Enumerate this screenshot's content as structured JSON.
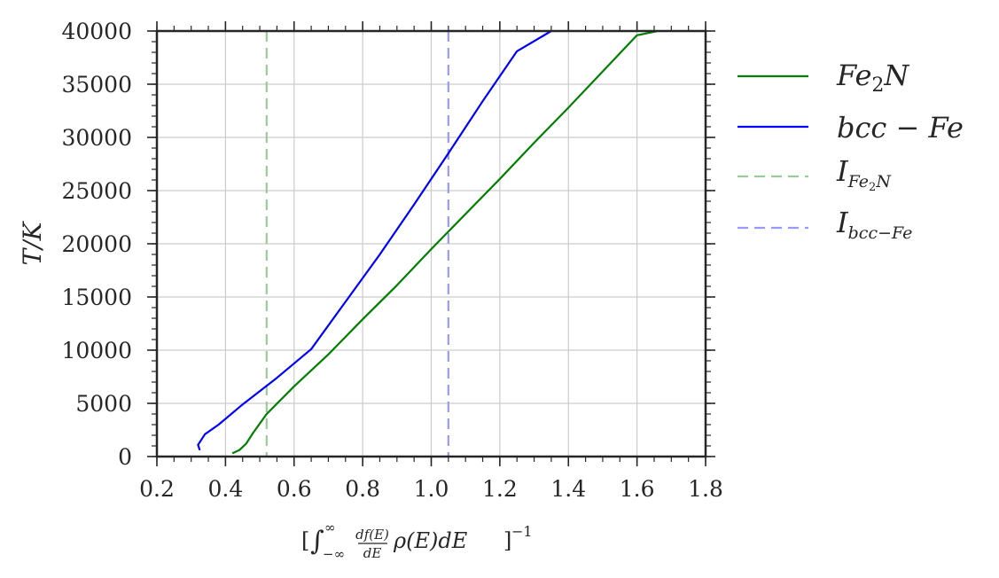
{
  "chart_data": {
    "type": "line",
    "xlabel": "",
    "ylabel": "T/K",
    "xlim": [
      0.2,
      1.8
    ],
    "ylim": [
      0,
      40000
    ],
    "xticks": [
      "0.2",
      "0.4",
      "0.6",
      "0.8",
      "1.0",
      "1.2",
      "1.4",
      "1.6",
      "1.8"
    ],
    "yticks": [
      "0",
      "5000",
      "10000",
      "15000",
      "20000",
      "25000",
      "30000",
      "35000",
      "40000"
    ],
    "grid": true,
    "legend_position": "outside-right",
    "series": [
      {
        "name": "Fe2N",
        "color": "#007f00",
        "style": "solid",
        "x": [
          0.42,
          0.44,
          0.46,
          0.48,
          0.52,
          0.6,
          0.7,
          0.8,
          0.9,
          1.0,
          1.1,
          1.2,
          1.3,
          1.4,
          1.5,
          1.6,
          1.66
        ],
        "y": [
          300,
          600,
          1200,
          2200,
          4000,
          6600,
          9600,
          12900,
          16100,
          19500,
          22800,
          26100,
          29500,
          32800,
          36200,
          39600,
          40000
        ]
      },
      {
        "name": "bcc-Fe",
        "color": "#0000ff",
        "style": "solid",
        "x": [
          0.325,
          0.32,
          0.34,
          0.38,
          0.45,
          0.55,
          0.65,
          0.76,
          0.85,
          0.95,
          1.05,
          1.15,
          1.25,
          1.35
        ],
        "y": [
          600,
          1100,
          2100,
          3000,
          4900,
          7400,
          10100,
          15000,
          19000,
          23700,
          28500,
          33400,
          38100,
          40000
        ]
      }
    ],
    "reference_lines": [
      {
        "name": "I_Fe2N",
        "x": 0.52,
        "color": "#99cc99",
        "style": "dashed"
      },
      {
        "name": "I_bcc-Fe",
        "x": 1.05,
        "color": "#9999ff",
        "style": "dashed"
      }
    ]
  }
}
